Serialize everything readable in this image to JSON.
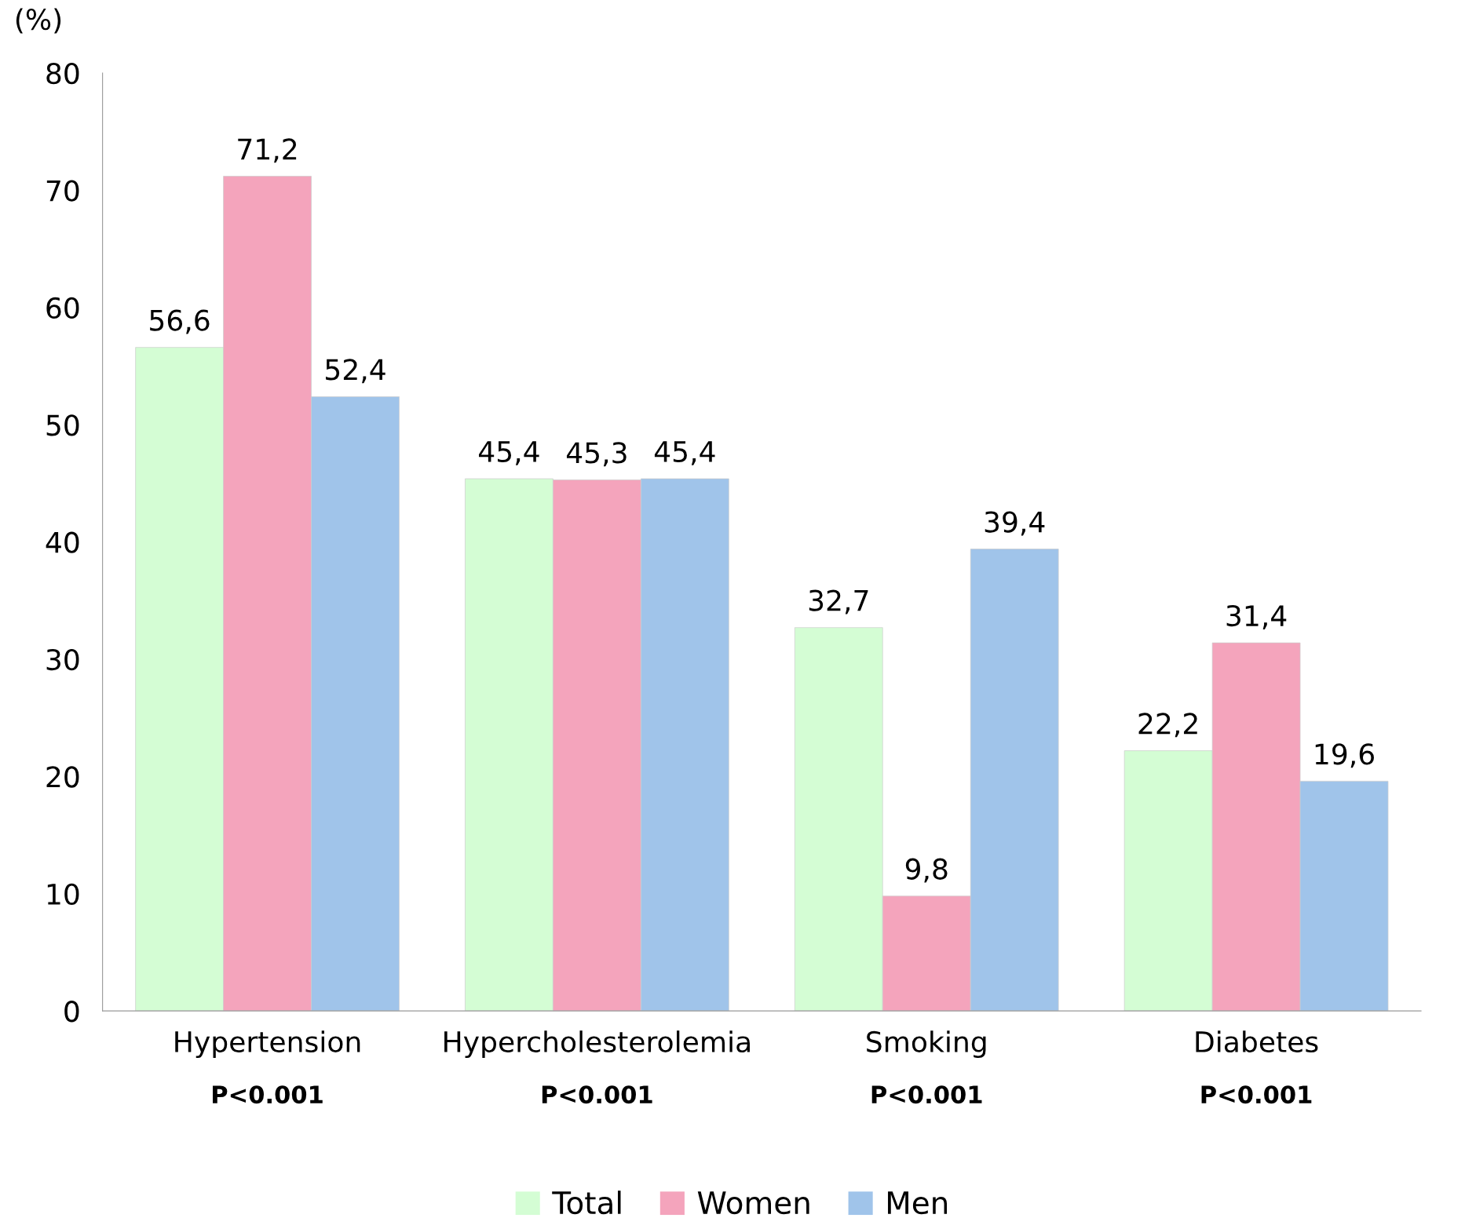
{
  "chart_data": {
    "type": "bar",
    "ylabel": "(%)",
    "categories": [
      "Hypertension",
      "Hypercholesterolemia",
      "Smoking",
      "Diabetes"
    ],
    "series": [
      {
        "name": "Total",
        "color": "#d4fdd4",
        "values": [
          56.6,
          45.4,
          32.7,
          22.2
        ],
        "value_labels": [
          "56,6",
          "45,4",
          "32,7",
          "22,2"
        ]
      },
      {
        "name": "Women",
        "color": "#f4a4bc",
        "values": [
          71.2,
          45.3,
          9.8,
          31.4
        ],
        "value_labels": [
          "71,2",
          "45,3",
          "9,8",
          "31,4"
        ]
      },
      {
        "name": "Men",
        "color": "#a0c4ea",
        "values": [
          52.4,
          45.4,
          39.4,
          19.6
        ],
        "value_labels": [
          "52,4",
          "45,4",
          "39,4",
          "19,6"
        ]
      }
    ],
    "ylim": [
      0,
      80
    ],
    "yticks": [
      0,
      10,
      20,
      30,
      40,
      50,
      60,
      70,
      80
    ],
    "grid": false,
    "legend": "bottom",
    "annotations": [
      "P<0.001",
      "P<0.001",
      "P<0.001",
      "P<0.001"
    ]
  }
}
